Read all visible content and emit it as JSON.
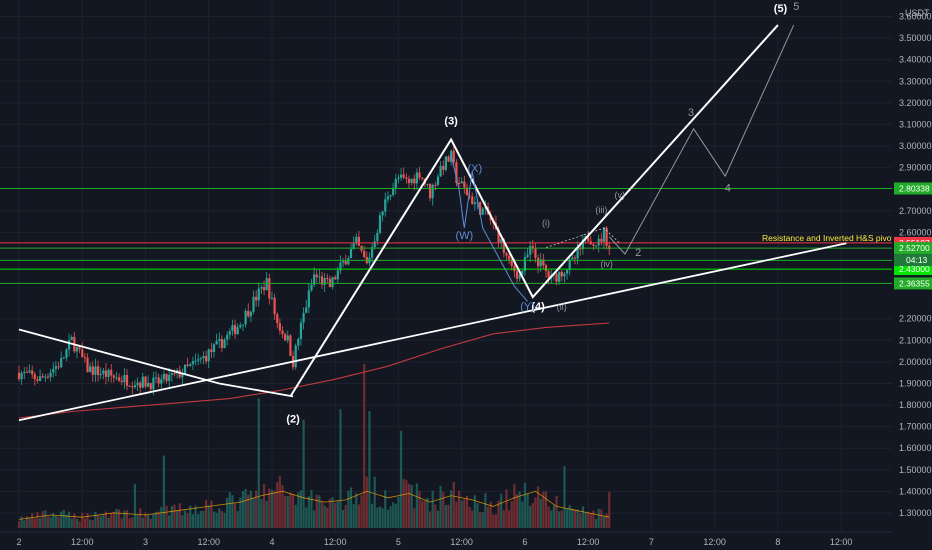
{
  "chart_data": {
    "type": "candlestick",
    "currency": "USDT",
    "y_ticks": [
      3.6,
      3.5,
      3.4,
      3.3,
      3.2,
      3.1,
      3.0,
      2.9,
      2.7,
      2.6,
      2.2,
      2.1,
      2.0,
      1.9,
      1.8,
      1.7,
      1.6,
      1.5,
      1.4,
      1.3
    ],
    "x_ticks": [
      {
        "t": 0,
        "label": "2"
      },
      {
        "t": 12,
        "label": "12:00"
      },
      {
        "t": 24,
        "label": "3"
      },
      {
        "t": 36,
        "label": "12:00"
      },
      {
        "t": 48,
        "label": "4"
      },
      {
        "t": 60,
        "label": "12:00"
      },
      {
        "t": 72,
        "label": "5"
      },
      {
        "t": 84,
        "label": "12:00"
      },
      {
        "t": 96,
        "label": "6"
      },
      {
        "t": 108,
        "label": "12:00"
      },
      {
        "t": 120,
        "label": "7"
      },
      {
        "t": 132,
        "label": "12:00"
      },
      {
        "t": 144,
        "label": "8"
      },
      {
        "t": 156,
        "label": "12:00"
      }
    ],
    "x_range_hours": [
      0,
      160
    ],
    "y_range": [
      1.25,
      3.68
    ],
    "price_path": [
      [
        0,
        1.95
      ],
      [
        4,
        1.92
      ],
      [
        8,
        2.0
      ],
      [
        10,
        2.1
      ],
      [
        13,
        1.97
      ],
      [
        18,
        1.93
      ],
      [
        22,
        1.91
      ],
      [
        26,
        1.9
      ],
      [
        30,
        1.94
      ],
      [
        34,
        2.0
      ],
      [
        38,
        2.08
      ],
      [
        42,
        2.18
      ],
      [
        45,
        2.3
      ],
      [
        47,
        2.37
      ],
      [
        49,
        2.18
      ],
      [
        51,
        2.1
      ],
      [
        52,
        2.0
      ],
      [
        54,
        2.22
      ],
      [
        56,
        2.4
      ],
      [
        59,
        2.35
      ],
      [
        62,
        2.48
      ],
      [
        64,
        2.55
      ],
      [
        66,
        2.45
      ],
      [
        68,
        2.62
      ],
      [
        70,
        2.78
      ],
      [
        72,
        2.85
      ],
      [
        74,
        2.83
      ],
      [
        76,
        2.88
      ],
      [
        78,
        2.78
      ],
      [
        80,
        2.9
      ],
      [
        82,
        2.95
      ],
      [
        83,
        2.85
      ],
      [
        85,
        2.78
      ],
      [
        87,
        2.72
      ],
      [
        89,
        2.68
      ],
      [
        91,
        2.58
      ],
      [
        93,
        2.45
      ],
      [
        95,
        2.4
      ],
      [
        97,
        2.52
      ],
      [
        99,
        2.45
      ],
      [
        101,
        2.38
      ],
      [
        103,
        2.42
      ],
      [
        105,
        2.46
      ],
      [
        106,
        2.5
      ],
      [
        108,
        2.58
      ],
      [
        110,
        2.55
      ],
      [
        111,
        2.6
      ],
      [
        112,
        2.53
      ]
    ],
    "volume_path": [
      [
        0,
        1.32
      ],
      [
        6,
        1.34
      ],
      [
        12,
        1.33
      ],
      [
        18,
        1.35
      ],
      [
        24,
        1.34
      ],
      [
        30,
        1.36
      ],
      [
        36,
        1.38
      ],
      [
        42,
        1.4
      ],
      [
        46,
        1.43
      ],
      [
        50,
        1.45
      ],
      [
        54,
        1.42
      ],
      [
        58,
        1.4
      ],
      [
        62,
        1.41
      ],
      [
        66,
        1.45
      ],
      [
        70,
        1.42
      ],
      [
        74,
        1.44
      ],
      [
        78,
        1.4
      ],
      [
        82,
        1.43
      ],
      [
        86,
        1.41
      ],
      [
        90,
        1.38
      ],
      [
        94,
        1.42
      ],
      [
        98,
        1.45
      ],
      [
        102,
        1.38
      ],
      [
        106,
        1.36
      ],
      [
        110,
        1.34
      ],
      [
        112,
        1.33
      ]
    ],
    "ma_path": [
      [
        0,
        1.74
      ],
      [
        10,
        1.77
      ],
      [
        20,
        1.79
      ],
      [
        30,
        1.81
      ],
      [
        40,
        1.83
      ],
      [
        50,
        1.87
      ],
      [
        60,
        1.92
      ],
      [
        70,
        1.98
      ],
      [
        80,
        2.06
      ],
      [
        90,
        2.13
      ],
      [
        100,
        2.16
      ],
      [
        106,
        2.17
      ],
      [
        112,
        2.18
      ]
    ],
    "ma_color": "#c2393f",
    "horizontal_levels": [
      {
        "price": 2.80338,
        "label": "2.80338",
        "color": "#22ab28"
      },
      {
        "price": 2.55107,
        "label": "2.55107",
        "color": "#f23645"
      },
      {
        "price": 2.527,
        "label": "2.52700",
        "color": "#22ab28"
      },
      {
        "price": 2.47,
        "label": "",
        "color": "#22ab28"
      },
      {
        "price": 2.43,
        "label": "2.43000",
        "color": "#00e600"
      },
      {
        "price": 2.36355,
        "label": "2.36355",
        "color": "#22ab28"
      }
    ],
    "price_countdown": "04:13",
    "annotation": "Resistance and Inverted H&S pivot",
    "main_wave_path": [
      [
        51.5,
        1.84
      ],
      [
        82,
        3.03
      ],
      [
        97.5,
        2.3
      ],
      [
        144,
        3.56
      ]
    ],
    "descending_trendline": [
      [
        0,
        2.15
      ],
      [
        38,
        1.9
      ],
      [
        52,
        1.84
      ]
    ],
    "ascending_trendline": [
      [
        0,
        1.73
      ],
      [
        157,
        2.55
      ]
    ],
    "projection_path": [
      [
        112,
        2.58
      ],
      [
        115,
        2.5
      ],
      [
        128,
        3.08
      ],
      [
        134,
        2.86
      ],
      [
        147,
        3.56
      ]
    ],
    "wxy_path": [
      [
        82,
        2.96
      ],
      [
        83.5,
        2.8
      ],
      [
        84.5,
        2.62
      ],
      [
        86,
        2.88
      ],
      [
        88,
        2.62
      ],
      [
        94,
        2.35
      ],
      [
        96.5,
        2.28
      ]
    ],
    "subwave_channel": [
      [
        100,
        2.53
      ],
      [
        111,
        2.62
      ],
      [
        114,
        2.55
      ]
    ],
    "wave_labels": [
      {
        "text": "(5)",
        "x": 144.5,
        "y": 3.62,
        "style": "white"
      },
      {
        "text": "5",
        "x": 147.5,
        "y": 3.63,
        "style": "gray"
      },
      {
        "text": "(3)",
        "x": 82,
        "y": 3.1,
        "style": "white"
      },
      {
        "text": "3",
        "x": 127.5,
        "y": 3.14,
        "style": "gray"
      },
      {
        "text": "4",
        "x": 134.5,
        "y": 2.79,
        "style": "gray"
      },
      {
        "text": "(2)",
        "x": 52,
        "y": 1.72,
        "style": "white"
      },
      {
        "text": "(4)",
        "x": 98.5,
        "y": 2.24,
        "style": "white"
      },
      {
        "text": "2",
        "x": 117.5,
        "y": 2.49,
        "style": "gray"
      },
      {
        "text": "(X)",
        "x": 86.5,
        "y": 2.88,
        "style": "blue"
      },
      {
        "text": "(W)",
        "x": 84.5,
        "y": 2.57,
        "style": "blue"
      },
      {
        "text": "(Y)",
        "x": 96.5,
        "y": 2.24,
        "style": "blue"
      },
      {
        "text": "(i)",
        "x": 100,
        "y": 2.63,
        "style": "small"
      },
      {
        "text": "(ii)",
        "x": 103,
        "y": 2.24,
        "style": "small"
      },
      {
        "text": "(iii)",
        "x": 110.5,
        "y": 2.69,
        "style": "small"
      },
      {
        "text": "(iv)",
        "x": 111.5,
        "y": 2.44,
        "style": "small"
      },
      {
        "text": "(v)",
        "x": 114,
        "y": 2.76,
        "style": "small"
      }
    ]
  }
}
